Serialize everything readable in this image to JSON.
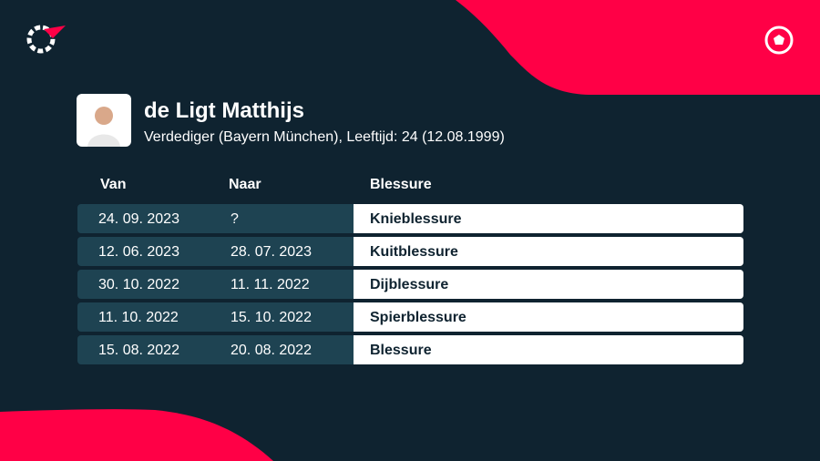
{
  "player": {
    "name": "de Ligt Matthijs",
    "details": "Verdediger (Bayern München), Leeftijd: 24 (12.08.1999)"
  },
  "table": {
    "headers": [
      "Van",
      "Naar",
      "Blessure"
    ],
    "rows": [
      [
        "24. 09. 2023",
        "?",
        "Knieblessure"
      ],
      [
        "12. 06. 2023",
        "28. 07. 2023",
        "Kuitblessure"
      ],
      [
        "30. 10. 2022",
        "11. 11. 2022",
        "Dijblessure"
      ],
      [
        "11. 10. 2022",
        "15. 10. 2022",
        "Spierblessure"
      ],
      [
        "15. 08. 2022",
        "20. 08. 2022",
        "Blessure"
      ]
    ]
  }
}
